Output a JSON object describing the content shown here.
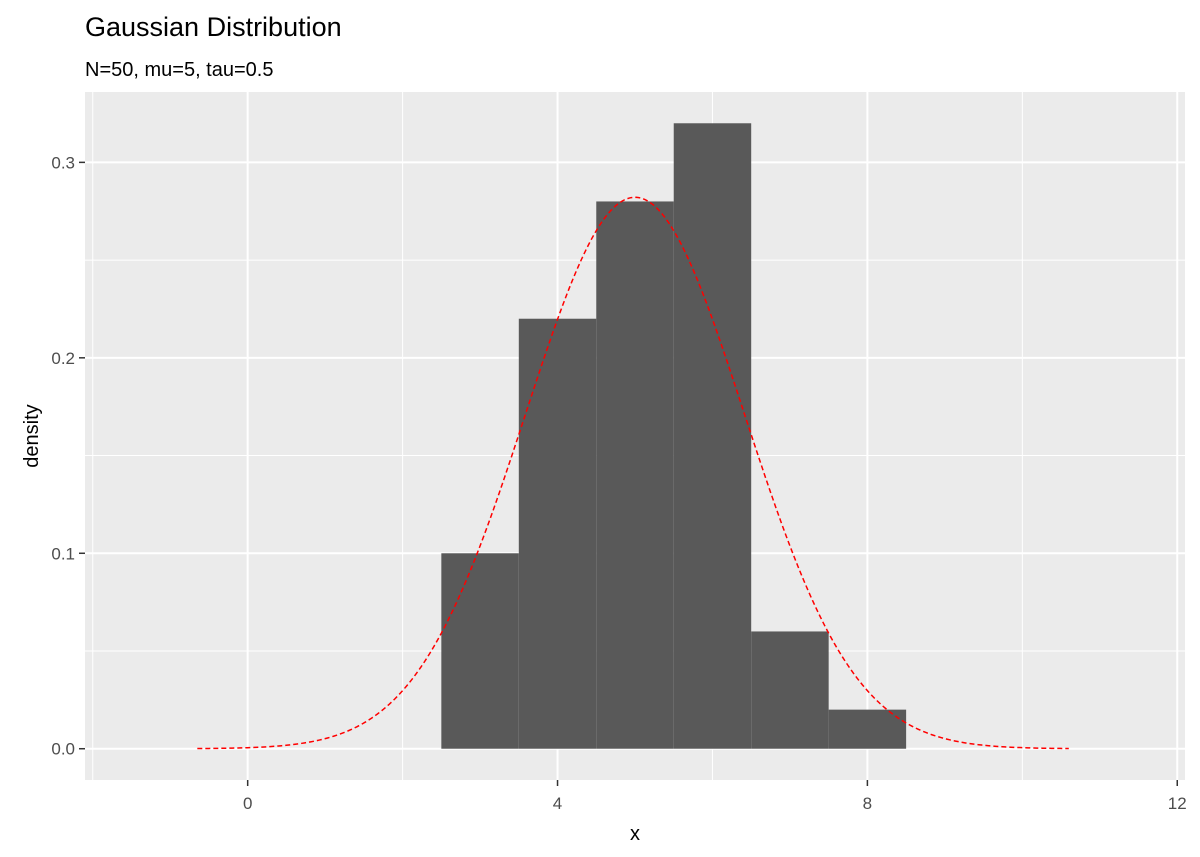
{
  "chart_data": {
    "type": "bar",
    "title": "Gaussian Distribution",
    "subtitle": "N=50, mu=5, tau=0.5",
    "xlabel": "x",
    "ylabel": "density",
    "xlim": [
      -2.1,
      12.1
    ],
    "ylim": [
      -0.016,
      0.336
    ],
    "x_ticks": [
      0,
      4,
      8,
      12
    ],
    "x_minor_ticks": [
      -2,
      2,
      6,
      10
    ],
    "y_ticks": [
      0.0,
      0.1,
      0.2,
      0.3
    ],
    "y_minor_ticks": [
      0.05,
      0.15,
      0.25
    ],
    "x_tick_labels": [
      "0",
      "4",
      "8",
      "12"
    ],
    "y_tick_labels": [
      "0.0",
      "0.1",
      "0.2",
      "0.3"
    ],
    "grid": true,
    "bin_width": 1,
    "bins": [
      {
        "x0": 2.5,
        "x1": 3.5,
        "density": 0.1
      },
      {
        "x0": 3.5,
        "x1": 4.5,
        "density": 0.22
      },
      {
        "x0": 4.5,
        "x1": 5.5,
        "density": 0.28
      },
      {
        "x0": 5.5,
        "x1": 6.5,
        "density": 0.32
      },
      {
        "x0": 6.5,
        "x1": 7.5,
        "density": 0.06
      },
      {
        "x0": 7.5,
        "x1": 8.5,
        "density": 0.02
      }
    ],
    "density_curve": {
      "distribution": "normal",
      "mean": 5,
      "sd": 1.414,
      "x_range": [
        -0.65,
        10.6
      ],
      "style": "dashed",
      "color": "#ff0000"
    },
    "colors": {
      "panel_background": "#ebebeb",
      "grid": "#ffffff",
      "bar_fill": "#595959",
      "tick_label": "#4d4d4d",
      "tick_mark": "#333333"
    }
  }
}
